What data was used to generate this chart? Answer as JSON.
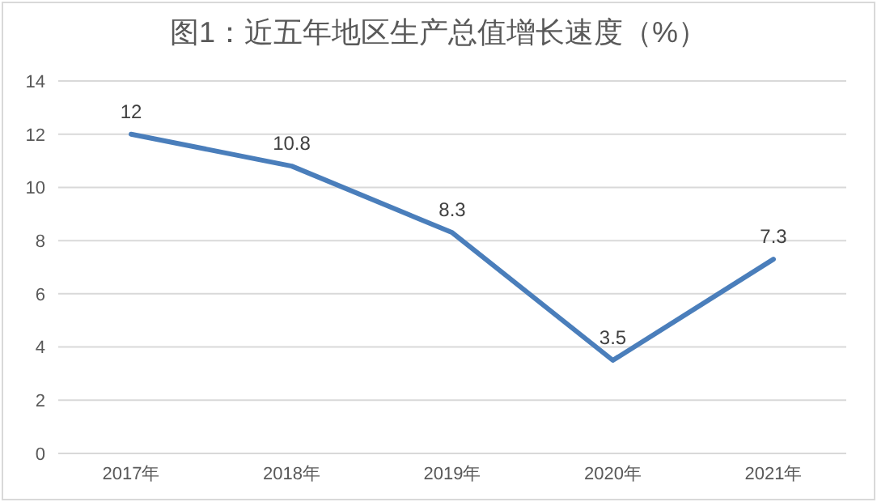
{
  "chart_data": {
    "type": "line",
    "title": "图1：近五年地区生产总值增长速度（%）",
    "categories": [
      "2017年",
      "2018年",
      "2019年",
      "2020年",
      "2021年"
    ],
    "series": [
      {
        "color": "#4a7ebb",
        "values": [
          12,
          10.8,
          8.3,
          3.5,
          7.3
        ]
      }
    ],
    "ylim": [
      0,
      14
    ],
    "yticks": [
      0,
      2,
      4,
      6,
      8,
      10,
      12,
      14
    ],
    "grid": "y",
    "legend": false,
    "marker": "none",
    "line_style": "solid",
    "data_labels": true
  }
}
